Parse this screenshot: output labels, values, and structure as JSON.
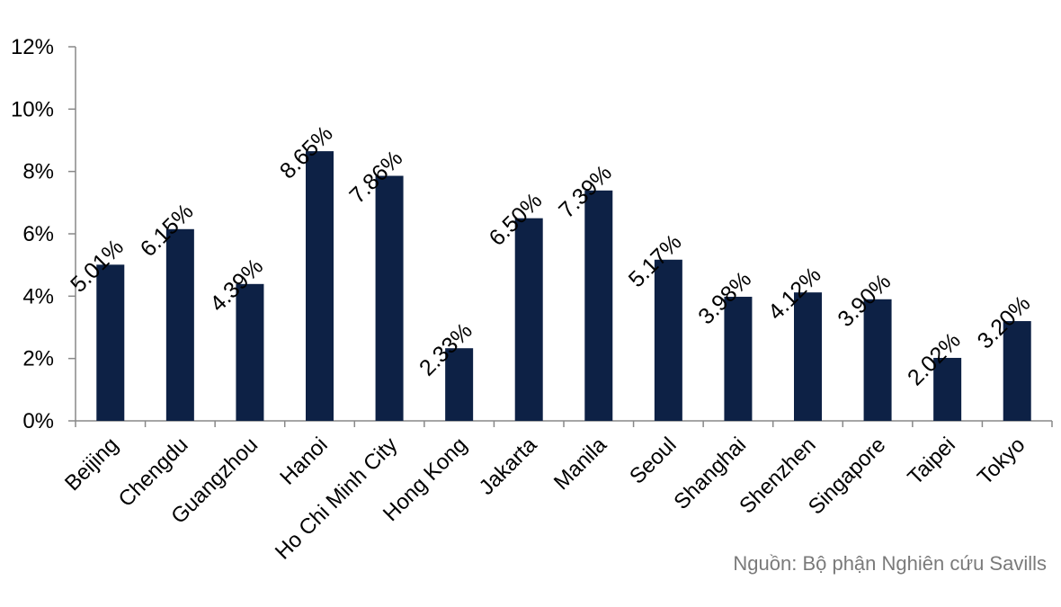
{
  "chart_data": {
    "type": "bar",
    "categories": [
      "Beijing",
      "Chengdu",
      "Guangzhou",
      "Hanoi",
      "Ho Chi Minh City",
      "Hong Kong",
      "Jakarta",
      "Manila",
      "Seoul",
      "Shanghai",
      "Shenzhen",
      "Singapore",
      "Taipei",
      "Tokyo"
    ],
    "values": [
      5.01,
      6.15,
      4.39,
      8.65,
      7.86,
      2.33,
      6.5,
      7.39,
      5.17,
      3.98,
      4.12,
      3.9,
      2.02,
      3.2
    ],
    "data_labels": [
      "5.01%",
      "6.15%",
      "4.39%",
      "8.65%",
      "7.86%",
      "2.33%",
      "6.50%",
      "7.39%",
      "5.17%",
      "3.98%",
      "4.12%",
      "3.90%",
      "2.02%",
      "3.20%"
    ],
    "title": "",
    "xlabel": "",
    "ylabel": "",
    "ylim": [
      0,
      12
    ],
    "yticks": [
      0,
      2,
      4,
      6,
      8,
      10,
      12
    ],
    "ytick_labels": [
      "0%",
      "2%",
      "4%",
      "6%",
      "8%",
      "10%",
      "12%"
    ],
    "grid": false,
    "bar_color": "#0d2145"
  },
  "source": "Nguồn: Bộ phận Nghiên cứu Savills"
}
